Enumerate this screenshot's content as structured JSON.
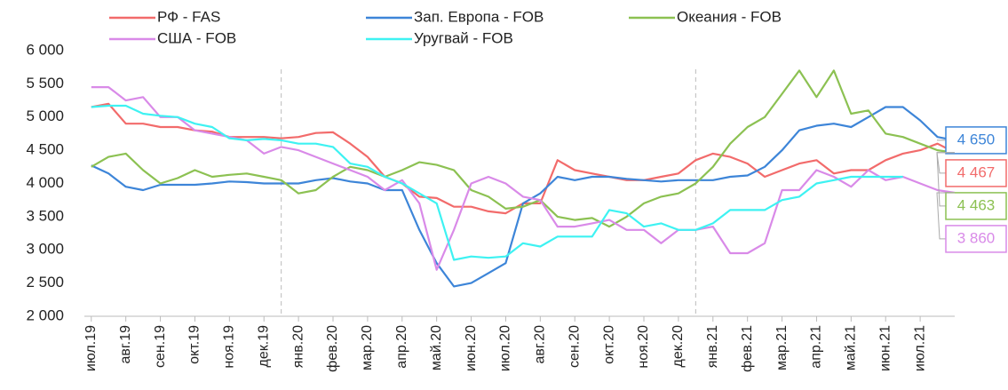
{
  "chart_data": {
    "type": "line",
    "x": [
      0,
      0.5,
      1,
      1.5,
      2,
      2.5,
      3,
      3.5,
      4,
      4.5,
      5,
      5.5,
      6,
      6.5,
      7,
      7.5,
      8,
      8.5,
      9,
      9.5,
      10,
      10.5,
      11,
      11.5,
      12,
      12.5,
      13,
      13.5,
      14,
      14.5,
      15,
      15.5,
      16,
      16.5,
      17,
      17.5,
      18,
      18.5,
      19,
      19.5,
      20,
      20.5,
      21,
      21.5,
      22,
      22.5,
      23,
      23.5,
      24,
      24.5,
      25
    ],
    "series": [
      {
        "name": "РФ - FAS",
        "color": "#f26b6b",
        "values": [
          5150,
          5200,
          4900,
          4900,
          4850,
          4850,
          4800,
          4780,
          4700,
          4700,
          4700,
          4680,
          4700,
          4760,
          4770,
          4600,
          4400,
          4100,
          4000,
          3800,
          3780,
          3650,
          3650,
          3580,
          3550,
          3700,
          3700,
          4350,
          4200,
          4150,
          4100,
          4050,
          4050,
          4100,
          4150,
          4350,
          4450,
          4400,
          4300,
          4100,
          4200,
          4300,
          4350,
          4150,
          4200,
          4200,
          4350,
          4450,
          4500,
          4600,
          4467
        ],
        "value_labels": [
          null,
          null,
          null,
          null,
          null,
          null,
          null,
          null,
          null,
          null,
          null,
          null,
          null,
          null,
          null,
          null,
          null,
          null,
          null,
          null,
          null,
          null,
          null,
          null,
          null,
          null,
          null,
          null,
          null,
          null,
          null,
          null,
          null,
          null,
          null,
          null,
          null,
          null,
          null,
          null,
          null,
          null,
          null,
          null,
          null,
          null,
          null,
          null,
          null,
          null,
          "4 467"
        ]
      },
      {
        "name": "Зап. Европа - FOB",
        "color": "#3d85d8",
        "values": [
          4270,
          4150,
          3950,
          3900,
          3980,
          3980,
          3980,
          4000,
          4030,
          4020,
          4000,
          4000,
          4000,
          4050,
          4080,
          4030,
          4000,
          3900,
          3900,
          3300,
          2800,
          2450,
          2500,
          2650,
          2800,
          3700,
          3850,
          4100,
          4050,
          4100,
          4100,
          4070,
          4050,
          4030,
          4050,
          4050,
          4050,
          4100,
          4120,
          4250,
          4500,
          4800,
          4870,
          4900,
          4850,
          5000,
          5150,
          5150,
          4950,
          4700,
          4650
        ],
        "value_labels": [
          null,
          null,
          null,
          null,
          null,
          null,
          null,
          null,
          null,
          null,
          null,
          null,
          null,
          null,
          null,
          null,
          null,
          null,
          null,
          null,
          null,
          null,
          null,
          null,
          null,
          null,
          null,
          null,
          null,
          null,
          null,
          null,
          null,
          null,
          null,
          null,
          null,
          null,
          null,
          null,
          null,
          null,
          null,
          null,
          null,
          null,
          null,
          null,
          null,
          null,
          "4 650"
        ]
      },
      {
        "name": "Океания - FOB",
        "color": "#8cc152",
        "values": [
          4250,
          4400,
          4450,
          4200,
          4000,
          4080,
          4200,
          4100,
          4130,
          4150,
          4100,
          4050,
          3850,
          3900,
          4100,
          4250,
          4200,
          4100,
          4200,
          4320,
          4280,
          4200,
          3900,
          3800,
          3620,
          3650,
          3750,
          3500,
          3450,
          3480,
          3350,
          3500,
          3700,
          3800,
          3850,
          4000,
          4250,
          4600,
          4850,
          5000,
          5350,
          5700,
          5300,
          5700,
          5050,
          5100,
          4750,
          4700,
          4600,
          4500,
          4463
        ],
        "value_labels": [
          null,
          null,
          null,
          null,
          null,
          null,
          null,
          null,
          null,
          null,
          null,
          null,
          null,
          null,
          null,
          null,
          null,
          null,
          null,
          null,
          null,
          null,
          null,
          null,
          null,
          null,
          null,
          null,
          null,
          null,
          null,
          null,
          null,
          null,
          null,
          null,
          null,
          null,
          null,
          null,
          null,
          null,
          null,
          null,
          null,
          null,
          null,
          null,
          null,
          null,
          "4 463"
        ]
      },
      {
        "name": "США - FOB",
        "color": "#d98ae8",
        "values": [
          5450,
          5450,
          5250,
          5300,
          5000,
          5000,
          4800,
          4750,
          4700,
          4650,
          4450,
          4550,
          4500,
          4400,
          4300,
          4200,
          4100,
          3900,
          4050,
          3700,
          2700,
          3300,
          4000,
          4100,
          4000,
          3800,
          3750,
          3350,
          3350,
          3400,
          3450,
          3300,
          3300,
          3100,
          3300,
          3300,
          3350,
          2950,
          2950,
          3100,
          3900,
          3900,
          4200,
          4100,
          3950,
          4200,
          4050,
          4100,
          4000,
          3900,
          3860
        ],
        "value_labels": [
          null,
          null,
          null,
          null,
          null,
          null,
          null,
          null,
          null,
          null,
          null,
          null,
          null,
          null,
          null,
          null,
          null,
          null,
          null,
          null,
          null,
          null,
          null,
          null,
          null,
          null,
          null,
          null,
          null,
          null,
          null,
          null,
          null,
          null,
          null,
          null,
          null,
          null,
          null,
          null,
          null,
          null,
          null,
          null,
          null,
          null,
          null,
          null,
          null,
          null,
          "3 860"
        ]
      },
      {
        "name": "Уругвай - FOB",
        "color": "#3ef2f2",
        "values": [
          5150,
          5170,
          5170,
          5050,
          5020,
          5000,
          4900,
          4850,
          4680,
          4650,
          4670,
          4650,
          4600,
          4600,
          4550,
          4300,
          4250,
          4100,
          4000,
          3850,
          3700,
          2850,
          2900,
          2880,
          2900,
          3100,
          3050,
          3200,
          3200,
          3200,
          3600,
          3550,
          3350,
          3400,
          3300,
          3300,
          3400,
          3600,
          3600,
          3600,
          3750,
          3800,
          4000,
          4050,
          4100,
          4100,
          4100,
          4100,
          null,
          null,
          null
        ]
      }
    ],
    "xlim": [
      -0.2,
      25
    ],
    "xticks": [
      {
        "value": 0,
        "label": "июл.19"
      },
      {
        "value": 1,
        "label": "авг.19"
      },
      {
        "value": 2,
        "label": "сен.19"
      },
      {
        "value": 3,
        "label": "окт.19"
      },
      {
        "value": 4,
        "label": "ноя.19"
      },
      {
        "value": 5,
        "label": "дек.19"
      },
      {
        "value": 6,
        "label": "янв.20"
      },
      {
        "value": 7,
        "label": "фев.20"
      },
      {
        "value": 8,
        "label": "мар.20"
      },
      {
        "value": 9,
        "label": "апр.20"
      },
      {
        "value": 10,
        "label": "май.20"
      },
      {
        "value": 11,
        "label": "июн.20"
      },
      {
        "value": 12,
        "label": "июл.20"
      },
      {
        "value": 13,
        "label": "авг.20"
      },
      {
        "value": 14,
        "label": "сен.20"
      },
      {
        "value": 15,
        "label": "окт.20"
      },
      {
        "value": 16,
        "label": "ноя.20"
      },
      {
        "value": 17,
        "label": "дек.20"
      },
      {
        "value": 18,
        "label": "янв.21"
      },
      {
        "value": 19,
        "label": "фев.21"
      },
      {
        "value": 20,
        "label": "мар.21"
      },
      {
        "value": 21,
        "label": "апр.21"
      },
      {
        "value": 22,
        "label": "май.21"
      },
      {
        "value": 23,
        "label": "июн.21"
      },
      {
        "value": 24,
        "label": "июл.21"
      }
    ],
    "ylim": [
      2000,
      6000
    ],
    "yticks": [
      {
        "value": 2000,
        "label": "2 000"
      },
      {
        "value": 2500,
        "label": "2 500"
      },
      {
        "value": 3000,
        "label": "3 000"
      },
      {
        "value": 3500,
        "label": "3 500"
      },
      {
        "value": 4000,
        "label": "4 000"
      },
      {
        "value": 4500,
        "label": "4 500"
      },
      {
        "value": 5000,
        "label": "5 000"
      },
      {
        "value": 5500,
        "label": "5 500"
      },
      {
        "value": 6000,
        "label": "6 000"
      }
    ],
    "grid": false
  }
}
